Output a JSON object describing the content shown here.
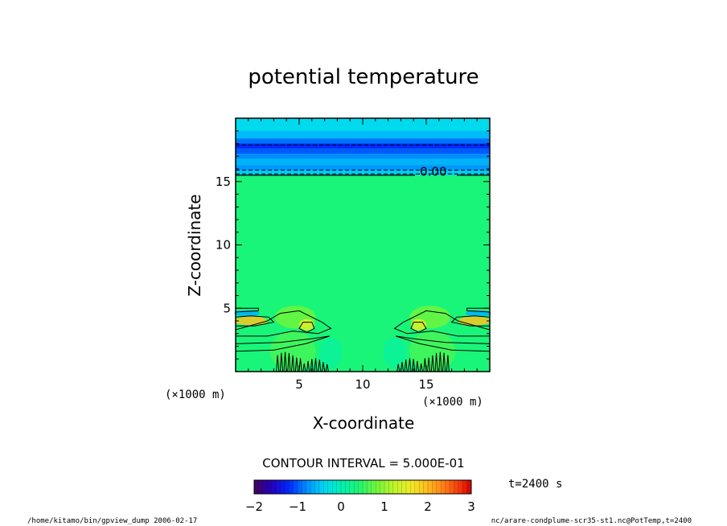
{
  "chart_data": {
    "type": "heatmap",
    "title": "potential temperature",
    "xlabel": "X-coordinate",
    "ylabel": "Z-coordinate",
    "xlim": [
      0,
      20
    ],
    "ylim": [
      0,
      20
    ],
    "x_ticks": [
      "5",
      "10",
      "15"
    ],
    "y_ticks": [
      "5",
      "10",
      "15"
    ],
    "x_tick_values": [
      5,
      10,
      15
    ],
    "y_tick_values": [
      5,
      10,
      15
    ],
    "x_multiplier_label": "(×1000 m)",
    "y_multiplier_label": "(×1000 m)",
    "contour_label": "0.00",
    "contour_label_position": [
      14.5,
      15.7
    ],
    "contour_interval_label": "CONTOUR INTERVAL = 5.000E-01",
    "colorbar": {
      "min": -2,
      "max": 3,
      "tick_labels": [
        "−2",
        "−1",
        "0",
        "1",
        "2",
        "3"
      ],
      "tick_values": [
        -2,
        -1,
        0,
        1,
        2,
        3
      ]
    },
    "time_label": "t=2400 s",
    "dashed_contour_levels_z": [
      15.6,
      15.9,
      17.9
    ],
    "upper_band": {
      "z_bottom": 15.5,
      "z_top": 20,
      "min_value": -2,
      "near_value": -0.3
    },
    "dominant_value": 0.3
  },
  "footer": {
    "left": "/home/kitamo/bin/gpview_dump  2006-02-17",
    "right": "nc/arare-condplume-scr35-st1.nc@PotTemp,t=2400"
  },
  "colors": {
    "background": "#ffffff",
    "frame": "#000000",
    "base_field": "#19f579"
  }
}
